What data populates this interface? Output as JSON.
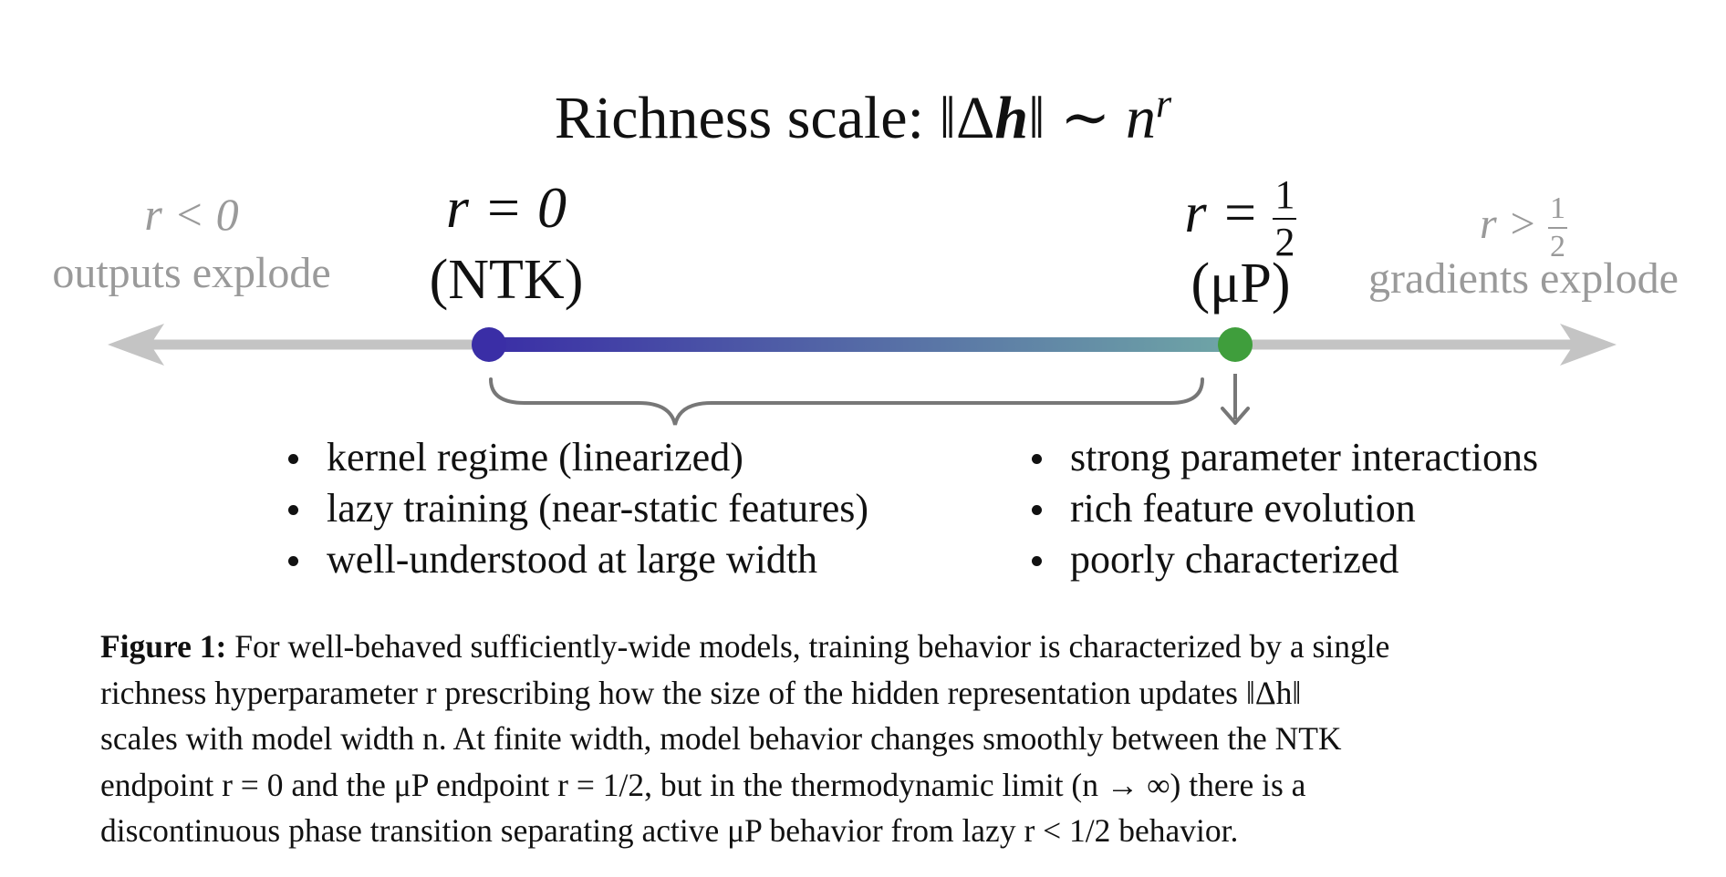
{
  "title": {
    "prefix": "Richness scale: ",
    "norm_open": "‖Δ",
    "vec": "h",
    "norm_close": "‖ ∼ ",
    "n": "n",
    "exp": "r"
  },
  "regions": {
    "left": {
      "cond": "r < 0",
      "text": "outputs explode"
    },
    "right": {
      "cond_lhs": "r >",
      "num": "1",
      "den": "2",
      "text": "gradients explode"
    }
  },
  "endpoints": {
    "ntk": {
      "eq": "r = 0",
      "name": "(NTK)"
    },
    "mup": {
      "eq_lhs": "r =",
      "num": "1",
      "den": "2",
      "name": "(μP)"
    }
  },
  "bullets": {
    "left": [
      "kernel regime (linearized)",
      "lazy training (near-static features)",
      "well-understood at large width"
    ],
    "right": [
      "strong parameter interactions",
      "rich feature evolution",
      "poorly characterized"
    ]
  },
  "caption": {
    "label": "Figure 1:",
    "lines": [
      " For well-behaved sufficiently-wide models, training behavior is characterized by a single",
      "richness hyperparameter r prescribing how the size of the hidden representation updates ‖Δh‖",
      "scales with model width n. At finite width, model behavior changes smoothly between the NTK",
      "endpoint r = 0 and the μP endpoint r = 1/2, but in the thermodynamic limit (n → ∞) there is a",
      "discontinuous phase transition separating active μP behavior from lazy r < 1/2 behavior."
    ]
  },
  "colors": {
    "axis_gray": "#c4c4c4",
    "ntk_dot": "#3a2ea6",
    "mup_dot": "#3f9e3c",
    "gradient_start": "#3a2ea6",
    "gradient_end": "#6fa6a6",
    "brace": "#777777"
  }
}
